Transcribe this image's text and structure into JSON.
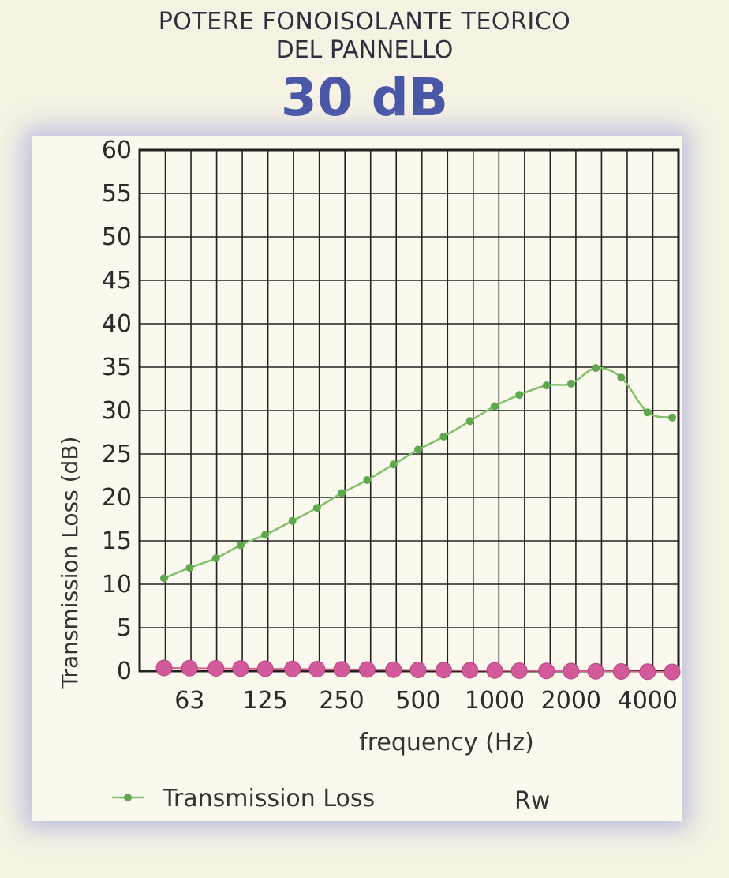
{
  "header": {
    "line1": "POTERE FONOISOLANTE TEORICO",
    "line2": "DEL PANNELLO",
    "rating": "30 dB"
  },
  "colors": {
    "rating": "#4a57a6",
    "tl_line": "#7fc06a",
    "tl_marker": "#5fa84e",
    "rw_marker": "#d35a9a",
    "rw_line": "#d6648f",
    "panel_glow": "#9aa0e0"
  },
  "chart_data": {
    "type": "line",
    "xlabel": "frequency (Hz)",
    "ylabel": "Transmission Loss  (dB)",
    "ylim": [
      0,
      60
    ],
    "yticks": [
      0,
      5,
      10,
      15,
      20,
      25,
      30,
      35,
      40,
      45,
      50,
      55,
      60
    ],
    "x_scale": "log (third-octave bands)",
    "xtick_labels": [
      "63",
      "125",
      "250",
      "500",
      "1000",
      "2000",
      "4000"
    ],
    "x": [
      50,
      63,
      80,
      100,
      125,
      160,
      200,
      250,
      315,
      400,
      500,
      630,
      800,
      1000,
      1250,
      1600,
      2000,
      2500,
      3150,
      4000,
      5000
    ],
    "grid": true,
    "series": [
      {
        "name": "Transmission Loss",
        "values": [
          10.7,
          11.9,
          13.0,
          14.5,
          15.7,
          17.3,
          18.8,
          20.5,
          22.0,
          23.8,
          25.5,
          27.0,
          28.8,
          30.5,
          31.8,
          32.9,
          33.1,
          34.9,
          33.8,
          29.8,
          29.2
        ]
      },
      {
        "name": "Rw",
        "values": [
          0,
          0,
          0,
          0,
          0,
          0,
          0,
          0,
          0,
          0,
          0,
          0,
          0,
          0,
          0,
          0,
          0,
          0,
          0,
          0,
          0
        ]
      }
    ],
    "legend_position": "bottom"
  }
}
